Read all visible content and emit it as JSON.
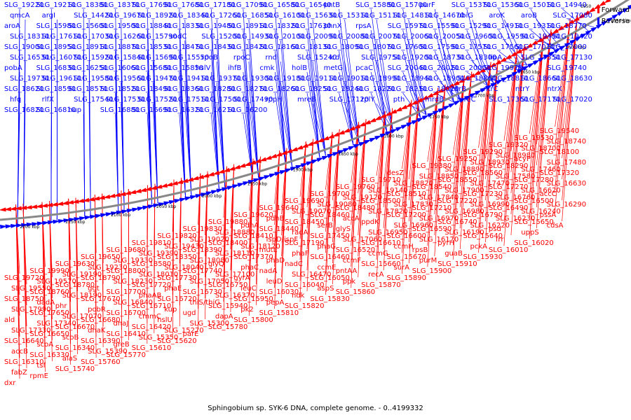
{
  "caption": "Sphingobium sp. SYK-6 DNA, complete genome. - 0..4199332",
  "legend": {
    "scale": "1550",
    "forward_label": "Forward",
    "reverse_label": "Reverse",
    "forward_color": "#ff0000",
    "reverse_color": "#0000ff"
  },
  "ticks": [
    "1550 kbp",
    "1600 kbp",
    "1650 kbp",
    "1700 kbp",
    "1750 kbp",
    "1800 kbp",
    "1850 kbp",
    "1900 kbp",
    "1950 kbp",
    "2000 kbp",
    "2050 kbp",
    "2100 kbp",
    "2150 kbp",
    "2200 kbp"
  ],
  "reverse_labels": [
    "SLG_19220",
    "SLG_19210",
    "SLG_18380",
    "SLG_18370",
    "SLG_17690",
    "SLG_17680",
    "SLG_17180",
    "SLG_17090",
    "SLG_16580",
    "SLG_16540",
    "pntB",
    "SLG_15880",
    "SLG_15700",
    "purF",
    "SLG_15370",
    "SLG_15360",
    "SLG_15010",
    "SLG_14940",
    "qmcA",
    "argI",
    "SLG_14420",
    "SLG_19670",
    "SLG_18920",
    "SLG_18340",
    "SLG_17260",
    "SLG_16850",
    "SLG_16100",
    "SLG_15630",
    "SLG_15310",
    "SLG_15110",
    "SLG_14810",
    "SLG_14670",
    "ubiG",
    "aroK",
    "aroB",
    "SLG_17080",
    "aroA",
    "SLG_15980",
    "SLG_15600",
    "SLG_19500",
    "SLG_18840",
    "SLG_18330",
    "SLG_19480",
    "SLG_18910",
    "SLG_18320",
    "SLG_17630",
    "phnX",
    "rpsA",
    "SLG_15970",
    "SLG_15590",
    "SLG_15290",
    "SLG_14910",
    "SLG_19310",
    "SLG_18770",
    "SLG_18310",
    "SLG_17610",
    "SLG_17030",
    "SLG_16260",
    "SLG_15790",
    "sodC",
    "SLG_15200",
    "SLG_14930",
    "SLG_20100",
    "SLG_20090",
    "SLG_20080",
    "SLG_20070",
    "SLG_20060",
    "SLG_20050",
    "SLG_19600",
    "SLG_19590",
    "SLG_19490",
    "SLG_19420",
    "SLG_19000",
    "SLG_18950",
    "SLG_18910",
    "SLG_18870",
    "SLG_18530",
    "SLG_18470",
    "SLG_18430",
    "SLG_18420",
    "SLG_18160",
    "SLG_18130",
    "SLG_18090",
    "SLG_18070",
    "SLG_17600",
    "SLG_17590",
    "SLG_17570",
    "SLG_17560",
    "SLG_17010",
    "SLG_17000",
    "SLG_16530",
    "SLG_16070",
    "SLG_15920",
    "SLG_15840",
    "SLG_15690",
    "SLG_15550",
    "rpoB",
    "rpoC",
    "rnd",
    "SLG_15240",
    "icd",
    "SLG_19750",
    "SLG_19200",
    "SLG_18730",
    "SLG_18300",
    "lipA",
    "SLG_17550",
    "SLG_17130",
    "pobA",
    "SLG_16830",
    "SLG_16250",
    "SLG_16060",
    "SLG_15680",
    "SLG_15850",
    "hslV",
    "ihfB",
    "cmk",
    "holB",
    "metG",
    "pcaC",
    "SLG_20040",
    "SLG_20020",
    "SLG_20000",
    "SLG_19970",
    "dac",
    "SLG_19740",
    "SLG_19730",
    "SLG_19610",
    "SLG_19580",
    "SLG_19560",
    "SLG_19470",
    "SLG_19410",
    "SLG_19370",
    "SLG_19300",
    "SLG_19180",
    "SLG_19110",
    "SLG_19010",
    "SLG_18990",
    "SLG_18940",
    "SLG_18900",
    "SLG_18860",
    "SLG_18810",
    "SLG_18660",
    "SLG_18630",
    "SLG_18620",
    "SLG_18590",
    "SLG_18570",
    "SLG_18520",
    "SLG_18490",
    "SLG_18360",
    "SLG_18280",
    "SLG_18270",
    "SLG_18260",
    "SLG_18250",
    "SLG_18240",
    "SLG_18220",
    "SLG_18210",
    "SLG_18020",
    "ntrB",
    "ntrC",
    "ntrY",
    "ntrX",
    "hfq",
    "rlfX",
    "SLG_17540",
    "SLG_17530",
    "SLG_17520",
    "SLG_17510",
    "SLG_17500",
    "SLG_17490",
    "rppH",
    "mreB",
    "SLG_17120",
    "rplY",
    "pth",
    "mrdB",
    "mreC",
    "SLG_17360",
    "SLG_17170",
    "SLG_17020",
    "SLG_16820",
    "SLG_16810",
    "hup",
    "SLG_16880",
    "SLG_16690",
    "SLG_16320",
    "SLG_16210",
    "SLG_16200"
  ],
  "forward_labels": [
    "SLG_19720",
    "SLG_19990",
    "SLG_19630",
    "SLG_19650",
    "SLG_19680",
    "SLG_19810",
    "SLG_19820",
    "SLG_19830",
    "SLG_19880",
    "SLG_19620",
    "SLG_19640",
    "SLG_19690",
    "SLG_19700",
    "SLG_19760",
    "SLG_19710",
    "desZ",
    "SLG_19380",
    "SLG_19250",
    "SLG_19290",
    "SLG_19320",
    "SLG_19530",
    "SLG_19540",
    "SLG_19550",
    "SLG_19570",
    "SLG_19190",
    "SLG_19230",
    "SLG_19330",
    "SLG_19390",
    "SLG_19430",
    "SLG_19020",
    "SLG_18880",
    "pdhA",
    "pdhB",
    "SLG_19070",
    "SLG_19080",
    "SLG_19120",
    "SLG_19140",
    "SLG_18820",
    "SLG_18850",
    "SLG_18890",
    "SLG_18930",
    "SLG_18980",
    "SLG_18700",
    "SLG_18740",
    "SLG_18750",
    "SLG_18760",
    "SLG_18780",
    "SLG_18790",
    "SLG_18800",
    "SLG_18580",
    "SLG_18350",
    "SLG_18390",
    "SLG_18400",
    "SLG_18410",
    "SLG_18440",
    "SLG_18450",
    "SLG_18460",
    "SLG_18480",
    "SLG_18500",
    "SLG_18510",
    "SLG_18540",
    "SLG_18550",
    "SLG_18560",
    "SLG_18290",
    "acyP",
    "SLG_18100",
    "SLG_17990",
    "dadA",
    "SLG_18190",
    "ggt",
    "SLG_18230",
    "SLG_18010",
    "SLG_18040",
    "SLG_18080",
    "SLG_18110",
    "SLG_18120",
    "ispD/ispF",
    "radA",
    "serB",
    "accA",
    "SLG_17820",
    "SLG_17830",
    "SLG_17840",
    "SLG_17900",
    "SLG_17470",
    "SLG_17580",
    "SLG_17460",
    "SLG_17480",
    "ald",
    "SLG_17650",
    "phr",
    "SLG_17670",
    "SLG_17700",
    "SLG_17720",
    "SLG_17730",
    "SLG_17740",
    "glyQ",
    "SLG_17370",
    "mutL",
    "SLG_17190",
    "SLG_17450",
    "glyS",
    "ppdK",
    "SLG_17200",
    "SLG_17210",
    "SLG_17220",
    "SLG_17230",
    "SLG_17270",
    "SLG_17280",
    "SLG_17320",
    "SLG_17330",
    "SLG_17340",
    "SLG_17070",
    "pobR",
    "SLG_16840",
    "phaAB",
    "phaE",
    "SLG_17050",
    "SLG_17100",
    "phaC",
    "phaD",
    "phaF",
    "phaG",
    "SLG_17060",
    "SLG_16950",
    "SLG_16960",
    "SLG_16970",
    "SLG_16980",
    "SLG_16990",
    "SLG_16760",
    "SLG_16620",
    "SLG_16630",
    "SLG_16640",
    "SLG_16650",
    "SLG_16670",
    "SLG_16680",
    "SLG_16700",
    "SLG_16710",
    "SLG_16720",
    "SLG_16730",
    "SLG_16750",
    "gyrA",
    "nadA",
    "nadC",
    "SLG_16460",
    "SLG_16520",
    "SLG_16610",
    "SLG_16600",
    "SLG_16590",
    "SLG_16740",
    "SLG_16790",
    "SLG_16490",
    "SLG_16500",
    "accC",
    "accB",
    "scoA",
    "scoB",
    "dnaK",
    "dnaJ",
    "cmmC",
    "kup",
    "thiS/thiG",
    "SLG_16370",
    "leuC",
    "leuD",
    "SLG_16470",
    "ccmE",
    "ccmF",
    "ccmG",
    "ccmH",
    "SLG_16170",
    "SLG_16190",
    "SLG_16220",
    "SLG_16230",
    "SLG_16240",
    "SLG_16290",
    "SLG_16310",
    "SLG_16330",
    "SLG_16340",
    "SLG_16390",
    "SLG_16410",
    "SLG_16420",
    "hslU",
    "ugd",
    "SLG_15940",
    "SLG_15950",
    "SLG_16030",
    "SLG_16040",
    "SLG_16050",
    "pntAA",
    "SLG_15660",
    "SLG_15670",
    "rpsB",
    "pyrH",
    "SLG_15640",
    "psd",
    "SLG_15650",
    "pssA",
    "fabZ",
    "tsf",
    "alaS",
    "SLG_15390",
    "greB",
    "SLG_15350",
    "SLG_15270",
    "SLG_15300",
    "dapA",
    "pk2",
    "pepA",
    "ndk",
    "aspS",
    "ppk",
    "recA",
    "surA",
    "purM",
    "guaB",
    "pckA",
    "frr",
    "uppS",
    "cdsA",
    "dxr",
    "rpmE",
    "SLG_15740",
    "SLG_15760",
    "SLG_15770",
    "SLG_15610",
    "SLG_15620",
    "parE",
    "SLG_15780",
    "SLG_15800",
    "SLG_15810",
    "SLG_15820",
    "SLG_15830",
    "SLG_15860",
    "SLG_15870",
    "SLG_15890",
    "SLG_15900",
    "SLG_15910",
    "SLG_15930",
    "SLG_16010",
    "SLG_16020"
  ]
}
